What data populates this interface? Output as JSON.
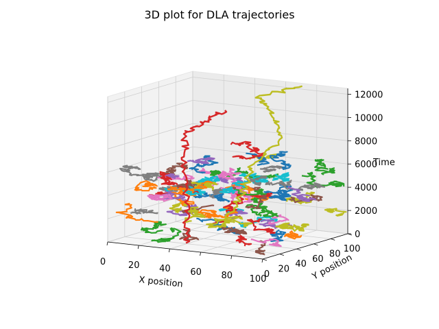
{
  "chart_data": {
    "type": "line",
    "projection": "3d",
    "title": "3D plot for DLA trajectories",
    "xlabel": "X position",
    "ylabel": "Y position",
    "zlabel": "Time",
    "xlim": [
      0,
      100
    ],
    "ylim": [
      0,
      100
    ],
    "zlim": [
      0,
      12500
    ],
    "xticks": [
      "0",
      "20",
      "40",
      "60",
      "80",
      "100"
    ],
    "yticks": [
      "0",
      "20",
      "40",
      "60",
      "80",
      "100"
    ],
    "zticks": [
      "0",
      "2000",
      "4000",
      "6000",
      "8000",
      "10000",
      "12000"
    ],
    "grid": true,
    "legend": "none",
    "series_colors": [
      "#1f77b4",
      "#ff7f0e",
      "#2ca02c",
      "#d62728",
      "#9467bd",
      "#8c564b",
      "#e377c2",
      "#7f7f7f",
      "#bcbd22",
      "#17becf"
    ],
    "long_trajectories": [
      {
        "color": "#bcbd22",
        "points": [
          [
            30,
            80,
            0
          ],
          [
            45,
            75,
            3000
          ],
          [
            55,
            70,
            6000
          ],
          [
            70,
            78,
            8200
          ],
          [
            60,
            85,
            10000
          ],
          [
            48,
            90,
            11200
          ],
          [
            75,
            92,
            12500
          ]
        ]
      },
      {
        "color": "#d62728",
        "points": [
          [
            40,
            20,
            0
          ],
          [
            35,
            30,
            3000
          ],
          [
            25,
            45,
            6000
          ],
          [
            20,
            55,
            8500
          ],
          [
            30,
            60,
            9500
          ],
          [
            40,
            65,
            10500
          ]
        ]
      }
    ]
  }
}
